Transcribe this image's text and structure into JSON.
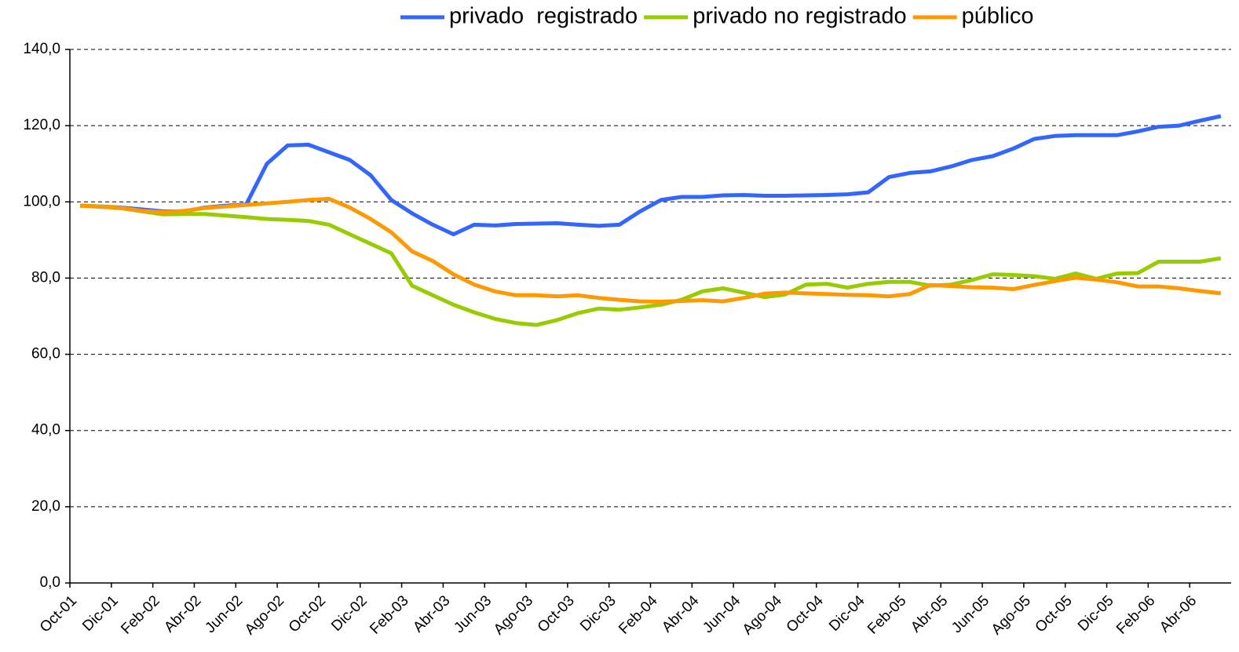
{
  "chart_data": {
    "type": "line",
    "categories": [
      "Oct-01",
      null,
      "Dic-01",
      null,
      "Feb-02",
      null,
      "Abr-02",
      null,
      "Jun-02",
      null,
      "Ago-02",
      null,
      "Oct-02",
      null,
      "Dic-02",
      null,
      "Feb-03",
      null,
      "Abr-03",
      null,
      "Jun-03",
      null,
      "Ago-03",
      null,
      "Oct-03",
      null,
      "Dic-03",
      null,
      "Feb-04",
      null,
      "Abr-04",
      null,
      "Jun-04",
      null,
      "Ago-04",
      null,
      "Oct-04",
      null,
      "Dic-04",
      null,
      "Feb-05",
      null,
      "Abr-05",
      null,
      "Jun-05",
      null,
      "Ago-05",
      null,
      "Oct-05",
      null,
      "Dic-05",
      null,
      "Feb-06",
      null,
      "Abr-06",
      null
    ],
    "series": [
      {
        "name": "privado  registrado",
        "color": "#3366ff",
        "values": [
          99,
          98.8,
          98.5,
          98,
          97.5,
          97.5,
          98.5,
          99,
          99.3,
          110,
          114.8,
          115,
          113,
          111,
          107,
          100.5,
          97,
          94,
          91.5,
          94,
          93.8,
          94.2,
          94.3,
          94.4,
          94,
          93.7,
          94,
          97.5,
          100.5,
          101.3,
          101.3,
          101.7,
          101.8,
          101.6,
          101.6,
          101.7,
          101.8,
          102,
          102.5,
          106.5,
          107.6,
          108,
          109.3,
          111,
          112,
          114,
          116.5,
          117.3,
          117.5,
          117.5,
          117.5,
          118.5,
          119.7,
          120,
          121.3,
          122.5
        ]
      },
      {
        "name": "privado no registrado",
        "color": "#99cc00",
        "values": [
          99,
          98.8,
          98.3,
          97.5,
          96.7,
          96.8,
          96.8,
          96.4,
          96,
          95.5,
          95.3,
          95,
          94,
          91.5,
          89,
          86.5,
          78,
          75.5,
          73,
          71,
          69.3,
          68.2,
          67.7,
          69,
          70.8,
          72,
          71.7,
          72.3,
          73,
          74.3,
          76.5,
          77.3,
          76.2,
          75,
          75.7,
          78.3,
          78.5,
          77.5,
          78.5,
          79,
          79,
          78,
          78.3,
          79.5,
          81,
          80.8,
          80.5,
          79.8,
          81.2,
          79.8,
          81.2,
          81.3,
          84.3,
          84.3,
          84.3,
          85.2
        ]
      },
      {
        "name": "público",
        "color": "#ff9900",
        "values": [
          99,
          98.7,
          98.4,
          97.6,
          97.3,
          97.6,
          98.4,
          98.8,
          99.2,
          99.6,
          100,
          100.5,
          100.8,
          98.5,
          95.5,
          92,
          87,
          84.5,
          81,
          78.3,
          76.5,
          75.5,
          75.5,
          75.2,
          75.5,
          74.8,
          74.3,
          73.9,
          73.8,
          74,
          74.2,
          73.9,
          74.8,
          75.9,
          76.2,
          76,
          75.8,
          75.6,
          75.5,
          75.2,
          75.8,
          78.2,
          77.9,
          77.6,
          77.5,
          77.1,
          78.2,
          79.2,
          80.1,
          79.6,
          78.9,
          77.8,
          77.8,
          77.3,
          76.6,
          76
        ]
      }
    ],
    "ylim": [
      0,
      140
    ],
    "yticks": [
      {
        "value": 0,
        "label": "0,0"
      },
      {
        "value": 20,
        "label": "20,0"
      },
      {
        "value": 40,
        "label": "40,0"
      },
      {
        "value": 60,
        "label": "60,0"
      },
      {
        "value": 80,
        "label": "80,0"
      },
      {
        "value": 100,
        "label": "100,0"
      },
      {
        "value": 120,
        "label": "120,0"
      },
      {
        "value": 140,
        "label": "140,0"
      }
    ],
    "grid": true,
    "legend": "top"
  }
}
